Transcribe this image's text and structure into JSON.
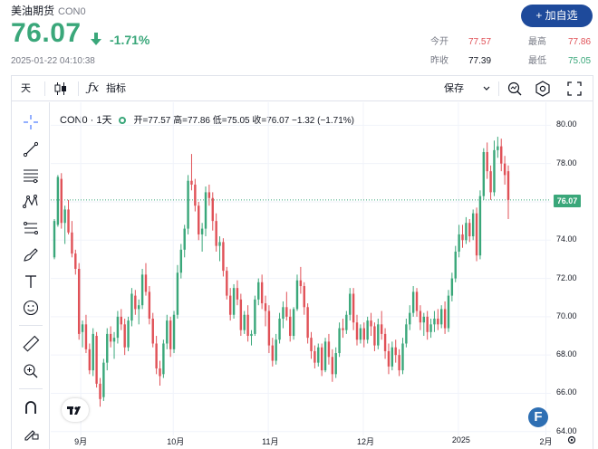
{
  "header": {
    "name": "美油期货",
    "symbol": "CON0",
    "price": "76.07",
    "change_pct": "-1.71%",
    "timestamp": "2025-01-22 04:10:38",
    "add_button": "+ 加自选",
    "stats": {
      "open_label": "今开",
      "open_value": "77.57",
      "high_label": "最高",
      "high_value": "77.86",
      "prev_close_label": "昨收",
      "prev_close_value": "77.39",
      "low_label": "最低",
      "low_value": "75.05"
    }
  },
  "toolbar": {
    "interval": "天",
    "indicators_label": "指标",
    "save_label": "保存"
  },
  "legend": {
    "name": "CON0 · 1天",
    "ohlc": "开=77.57 高=77.86 低=75.05 收=76.07 −1.32 (−1.71%)"
  },
  "colors": {
    "up": "#3aa77a",
    "down": "#e05157",
    "accent": "#1e4a9b"
  },
  "chart_data": {
    "type": "candlestick",
    "y_ticks": [
      "80.00",
      "78.00",
      "76.00",
      "74.00",
      "72.00",
      "70.00",
      "68.00",
      "66.00",
      "64.00"
    ],
    "x_ticks": [
      "9月",
      "10月",
      "11月",
      "12月",
      "2025",
      "2月"
    ],
    "ylim": [
      63.8,
      81.2
    ],
    "last_price_label": "76.07",
    "candles": [
      [
        73.1,
        75.1,
        73.0,
        75.0
      ],
      [
        74.8,
        77.4,
        74.7,
        77.3
      ],
      [
        77.2,
        77.5,
        74.6,
        74.9
      ],
      [
        74.9,
        75.8,
        73.8,
        75.6
      ],
      [
        75.6,
        76.1,
        74.3,
        74.4
      ],
      [
        74.4,
        75.0,
        73.1,
        73.3
      ],
      [
        73.3,
        73.5,
        72.2,
        72.5
      ],
      [
        72.5,
        72.8,
        68.8,
        69.1
      ],
      [
        69.2,
        69.8,
        68.4,
        69.6
      ],
      [
        69.6,
        70.1,
        68.1,
        68.3
      ],
      [
        68.3,
        68.6,
        67.0,
        67.2
      ],
      [
        67.2,
        69.4,
        66.9,
        69.1
      ],
      [
        69.0,
        69.2,
        66.3,
        66.5
      ],
      [
        66.5,
        66.8,
        65.3,
        65.7
      ],
      [
        65.8,
        67.8,
        65.6,
        67.6
      ],
      [
        67.6,
        69.4,
        67.2,
        69.1
      ],
      [
        69.1,
        69.5,
        68.4,
        68.7
      ],
      [
        68.7,
        69.2,
        67.8,
        68.9
      ],
      [
        68.9,
        70.3,
        68.6,
        70.0
      ],
      [
        70.0,
        70.4,
        69.3,
        69.6
      ],
      [
        69.6,
        69.9,
        68.0,
        68.4
      ],
      [
        68.4,
        70.0,
        68.2,
        69.8
      ],
      [
        69.8,
        71.5,
        69.5,
        71.2
      ],
      [
        71.1,
        71.4,
        70.1,
        70.4
      ],
      [
        70.4,
        70.9,
        69.6,
        70.6
      ],
      [
        70.6,
        72.5,
        70.4,
        72.2
      ],
      [
        72.2,
        72.8,
        71.1,
        71.3
      ],
      [
        71.3,
        71.6,
        69.6,
        69.9
      ],
      [
        69.9,
        70.2,
        68.4,
        68.6
      ],
      [
        68.6,
        69.0,
        67.0,
        67.3
      ],
      [
        67.3,
        67.7,
        66.4,
        66.9
      ],
      [
        67.0,
        68.8,
        66.8,
        68.6
      ],
      [
        68.6,
        70.1,
        68.3,
        69.8
      ],
      [
        69.8,
        70.0,
        67.9,
        68.3
      ],
      [
        68.3,
        70.3,
        68.1,
        70.1
      ],
      [
        70.1,
        72.7,
        69.9,
        72.3
      ],
      [
        72.3,
        73.8,
        72.0,
        73.5
      ],
      [
        73.5,
        74.8,
        73.1,
        74.6
      ],
      [
        74.6,
        77.4,
        74.3,
        77.1
      ],
      [
        77.1,
        78.5,
        76.6,
        76.9
      ],
      [
        76.9,
        77.2,
        75.5,
        75.8
      ],
      [
        75.8,
        76.0,
        74.0,
        74.3
      ],
      [
        74.3,
        74.9,
        73.4,
        74.6
      ],
      [
        74.6,
        76.8,
        74.2,
        76.5
      ],
      [
        76.5,
        76.9,
        75.8,
        76.2
      ],
      [
        76.2,
        76.5,
        74.5,
        75.0
      ],
      [
        75.0,
        75.4,
        73.4,
        73.7
      ],
      [
        73.7,
        74.2,
        72.9,
        73.9
      ],
      [
        73.9,
        74.1,
        72.1,
        72.4
      ],
      [
        72.4,
        72.6,
        70.9,
        71.1
      ],
      [
        71.1,
        71.5,
        69.8,
        70.1
      ],
      [
        70.1,
        71.7,
        69.9,
        71.5
      ],
      [
        71.5,
        71.9,
        70.6,
        70.9
      ],
      [
        70.9,
        71.2,
        69.0,
        69.3
      ],
      [
        69.3,
        70.3,
        69.1,
        70.1
      ],
      [
        70.1,
        70.6,
        68.7,
        69.0
      ],
      [
        69.0,
        69.3,
        68.5,
        69.1
      ],
      [
        69.1,
        71.1,
        69.0,
        70.9
      ],
      [
        70.9,
        72.0,
        70.6,
        71.8
      ],
      [
        71.8,
        72.2,
        70.4,
        70.7
      ],
      [
        70.7,
        71.1,
        69.5,
        70.3
      ],
      [
        70.3,
        70.6,
        68.1,
        68.5
      ],
      [
        68.5,
        68.9,
        67.4,
        67.7
      ],
      [
        67.7,
        69.1,
        67.5,
        68.8
      ],
      [
        68.8,
        70.2,
        68.6,
        69.9
      ],
      [
        69.9,
        70.8,
        69.4,
        70.5
      ],
      [
        70.5,
        71.3,
        69.8,
        70.0
      ],
      [
        70.0,
        70.4,
        68.7,
        69.0
      ],
      [
        69.0,
        70.5,
        68.8,
        70.4
      ],
      [
        70.4,
        72.2,
        70.3,
        71.9
      ],
      [
        71.9,
        72.6,
        71.2,
        71.6
      ],
      [
        71.6,
        71.8,
        70.1,
        70.5
      ],
      [
        70.5,
        70.7,
        68.6,
        68.9
      ],
      [
        68.9,
        69.2,
        67.8,
        68.2
      ],
      [
        68.2,
        68.5,
        67.3,
        67.6
      ],
      [
        67.6,
        68.6,
        67.4,
        68.4
      ],
      [
        68.4,
        68.6,
        66.9,
        67.2
      ],
      [
        67.2,
        68.9,
        67.1,
        68.7
      ],
      [
        68.7,
        69.1,
        67.5,
        67.9
      ],
      [
        67.9,
        68.3,
        66.6,
        67.0
      ],
      [
        67.0,
        68.4,
        66.8,
        68.1
      ],
      [
        68.1,
        69.7,
        67.9,
        69.4
      ],
      [
        69.4,
        69.9,
        68.9,
        69.3
      ],
      [
        69.3,
        70.3,
        69.1,
        70.1
      ],
      [
        70.1,
        71.5,
        69.8,
        71.2
      ],
      [
        71.2,
        71.5,
        69.3,
        69.7
      ],
      [
        69.7,
        70.1,
        68.5,
        68.8
      ],
      [
        68.8,
        69.6,
        68.6,
        69.4
      ],
      [
        69.4,
        69.7,
        68.4,
        68.8
      ],
      [
        68.8,
        70.0,
        68.6,
        69.8
      ],
      [
        69.8,
        70.2,
        69.0,
        69.5
      ],
      [
        69.5,
        69.7,
        68.2,
        68.5
      ],
      [
        68.5,
        69.9,
        68.3,
        69.6
      ],
      [
        69.6,
        70.3,
        68.8,
        69.1
      ],
      [
        69.1,
        69.4,
        67.8,
        68.2
      ],
      [
        68.2,
        68.6,
        67.0,
        67.4
      ],
      [
        67.4,
        68.7,
        67.2,
        68.4
      ],
      [
        68.4,
        68.8,
        67.6,
        68.0
      ],
      [
        68.0,
        68.3,
        66.9,
        67.2
      ],
      [
        67.2,
        68.9,
        67.0,
        68.6
      ],
      [
        68.6,
        69.9,
        68.4,
        69.6
      ],
      [
        69.6,
        70.6,
        69.3,
        70.2
      ],
      [
        70.2,
        71.6,
        70.0,
        71.3
      ],
      [
        71.3,
        71.5,
        70.0,
        70.3
      ],
      [
        70.3,
        70.6,
        69.3,
        69.7
      ],
      [
        69.7,
        70.2,
        69.0,
        70.0
      ],
      [
        70.0,
        70.3,
        68.8,
        69.2
      ],
      [
        69.2,
        69.9,
        68.9,
        69.6
      ],
      [
        69.6,
        70.3,
        69.2,
        69.9
      ],
      [
        69.9,
        70.4,
        69.3,
        69.6
      ],
      [
        69.6,
        70.6,
        69.4,
        70.4
      ],
      [
        70.4,
        70.8,
        69.1,
        69.4
      ],
      [
        69.4,
        71.4,
        69.2,
        71.1
      ],
      [
        71.1,
        72.3,
        70.8,
        72.0
      ],
      [
        72.0,
        73.7,
        71.8,
        73.4
      ],
      [
        73.4,
        74.8,
        73.1,
        74.3
      ],
      [
        74.3,
        74.8,
        73.6,
        74.0
      ],
      [
        74.0,
        75.2,
        73.8,
        74.9
      ],
      [
        74.9,
        75.1,
        73.9,
        74.2
      ],
      [
        74.2,
        75.6,
        74.0,
        75.4
      ],
      [
        75.4,
        75.7,
        72.9,
        73.2
      ],
      [
        73.2,
        76.6,
        73.0,
        76.3
      ],
      [
        76.3,
        78.8,
        76.1,
        78.6
      ],
      [
        78.6,
        79.1,
        77.2,
        77.6
      ],
      [
        77.6,
        77.9,
        76.1,
        76.5
      ],
      [
        76.5,
        79.2,
        76.3,
        78.7
      ],
      [
        78.7,
        79.4,
        78.3,
        78.9
      ],
      [
        78.9,
        79.3,
        77.6,
        78.0
      ],
      [
        78.0,
        78.4,
        76.9,
        77.4
      ],
      [
        77.6,
        77.9,
        75.1,
        76.1
      ]
    ]
  }
}
